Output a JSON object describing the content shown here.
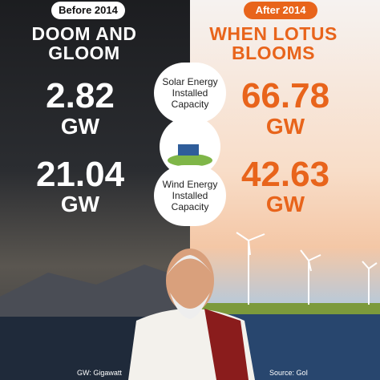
{
  "before": {
    "period": "Before 2014",
    "heading": "DOOM AND GLOOM",
    "solar": {
      "value": "2.82",
      "unit": "GW"
    },
    "wind": {
      "value": "21.04",
      "unit": "GW"
    }
  },
  "after": {
    "period": "After 2014",
    "heading": "WHEN LOTUS BLOOMS",
    "solar": {
      "value": "66.78",
      "unit": "GW"
    },
    "wind": {
      "value": "42.63",
      "unit": "GW"
    }
  },
  "labels": {
    "solar": "Solar Energy Installed Capacity",
    "wind": "Wind Energy Installed Capacity"
  },
  "footer": {
    "note": "GW: Gigawatt",
    "source": "Source: GoI"
  }
}
